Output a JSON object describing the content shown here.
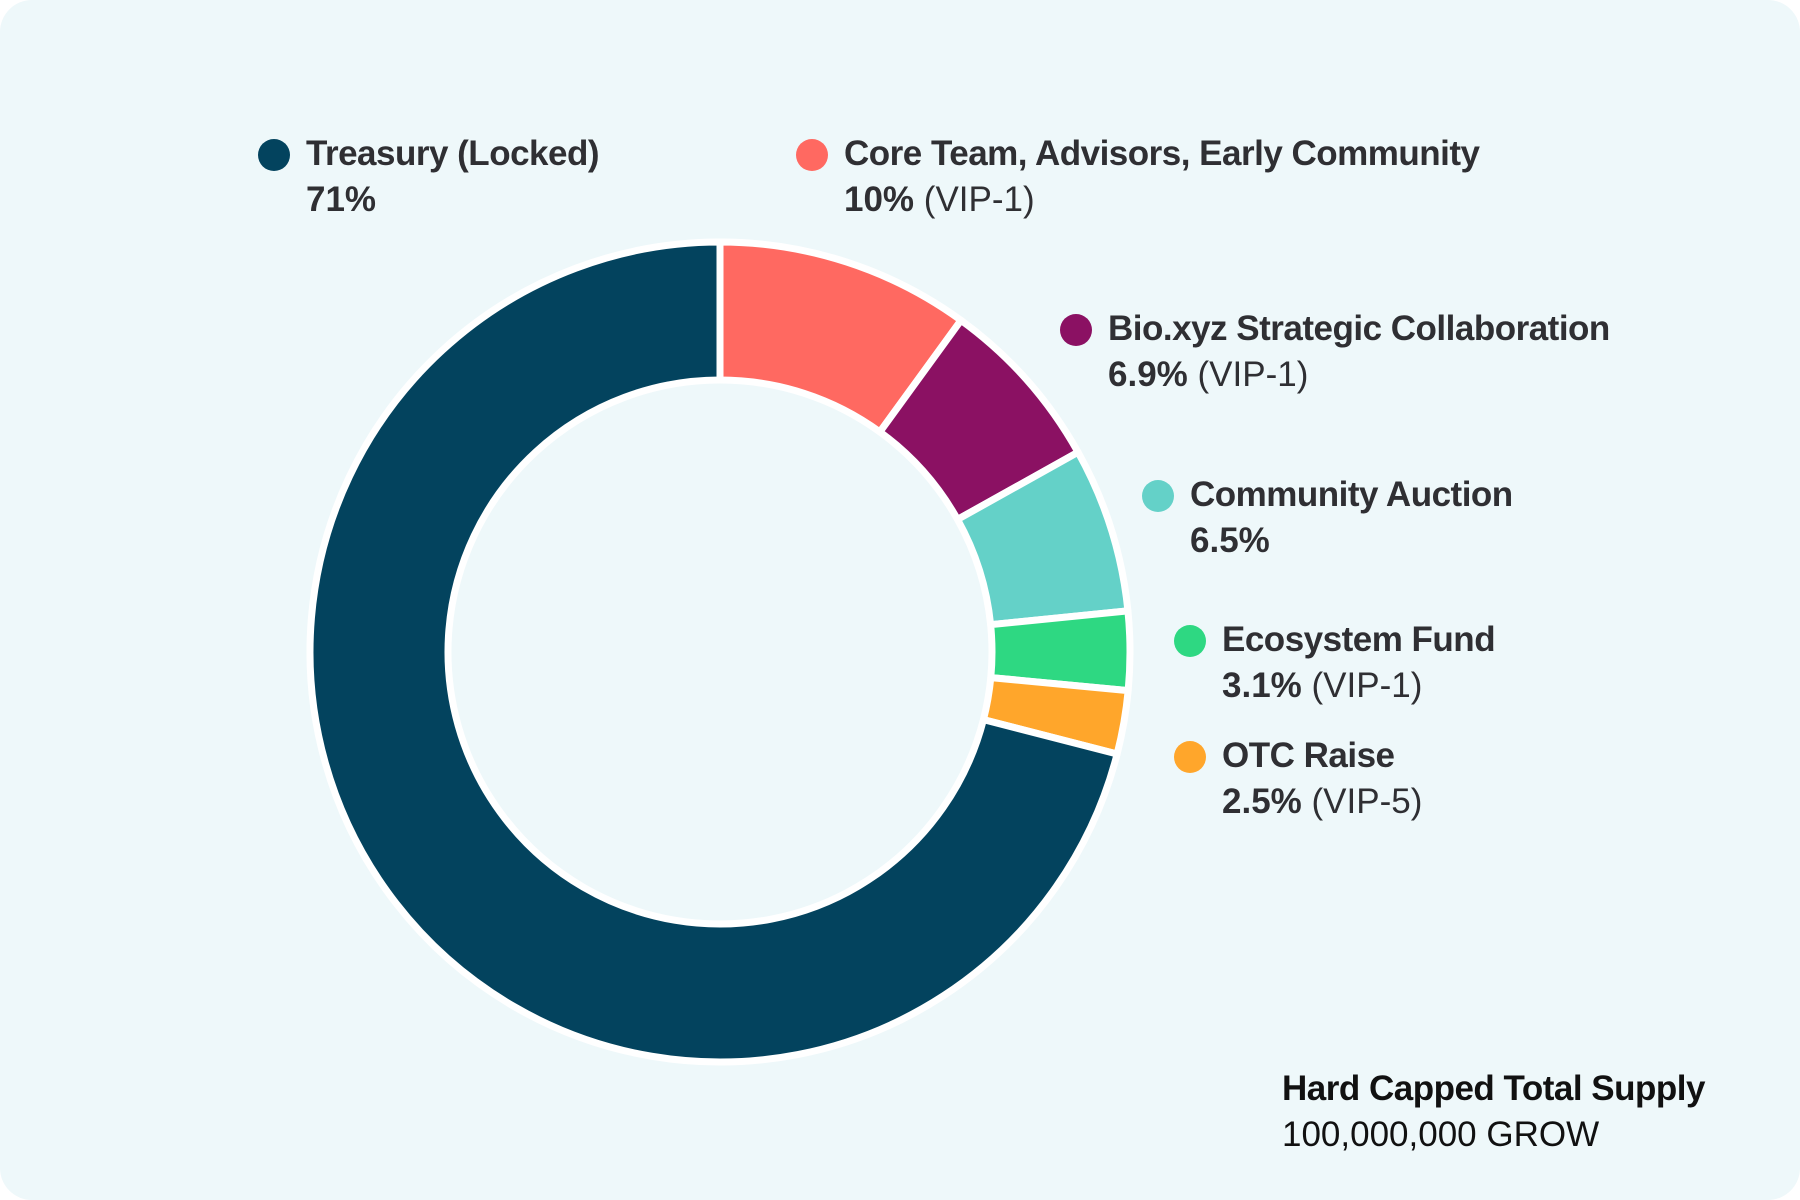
{
  "chart_data": {
    "type": "pie",
    "variant": "donut",
    "categories": [
      "Treasury (Locked)",
      "Core Team, Advisors, Early Community",
      "Bio.xyz Strategic Collaboration",
      "Community Auction",
      "Ecosystem Fund",
      "OTC Raise"
    ],
    "values": [
      71,
      10,
      6.9,
      6.5,
      3.1,
      2.5
    ],
    "value_labels": [
      "71%",
      "10%",
      "6.9%",
      "6.5%",
      "3.1%",
      "2.5%"
    ],
    "notes": [
      "",
      "(VIP-1)",
      "(VIP-1)",
      "",
      "(VIP-1)",
      "(VIP-5)"
    ],
    "colors": [
      "#03435e",
      "#ff6961",
      "#8b1163",
      "#64d1c8",
      "#2ed882",
      "#ffa62b"
    ],
    "legend_position": "right"
  },
  "supply": {
    "title": "Hard Capped Total Supply",
    "amount": "100,000,000 GROW"
  }
}
